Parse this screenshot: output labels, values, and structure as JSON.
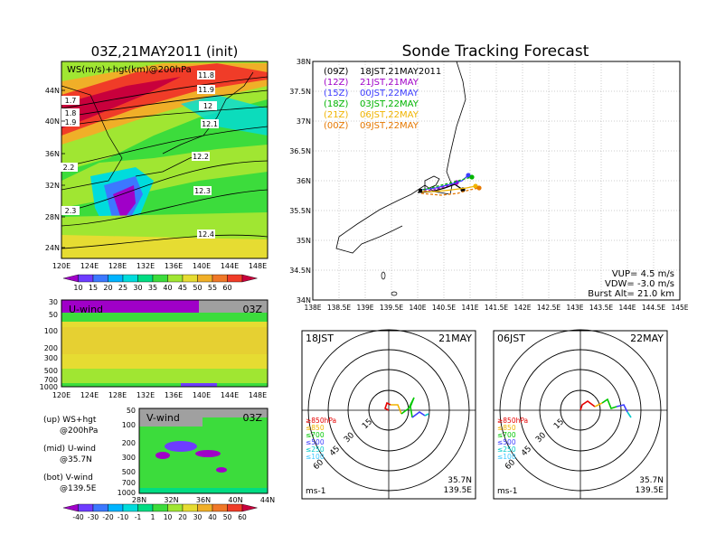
{
  "left_top": {
    "title": "03Z,21MAY2011 (init)",
    "inner_label": "WS(m/s)+hgt(km)@200hPa",
    "lat_ticks": [
      "44N",
      "40N",
      "36N",
      "32N",
      "28N",
      "24N"
    ],
    "lon_ticks": [
      "120E",
      "124E",
      "128E",
      "132E",
      "136E",
      "140E",
      "144E",
      "148E"
    ],
    "contour_labels": [
      "11.8",
      "11.9",
      "12",
      "12.1",
      "12.2",
      "12.3",
      "12.4",
      "1.7",
      "1.8",
      "1.9",
      "2.2",
      "2.3"
    ],
    "colorbar_labels": [
      "10",
      "15",
      "20",
      "25",
      "30",
      "35",
      "40",
      "45",
      "50",
      "55",
      "60"
    ],
    "colorbar_colors": [
      "#a000c8",
      "#6e3cff",
      "#3c78ff",
      "#00b4ff",
      "#00dcdc",
      "#00dc82",
      "#3cdc3c",
      "#a0e632",
      "#e6dc32",
      "#f0af28",
      "#f07828",
      "#f03c28",
      "#c8003c"
    ]
  },
  "u_panel": {
    "label": "U-wind",
    "time": "03Z",
    "p_ticks": [
      "30",
      "50",
      "100",
      "200",
      "300",
      "500",
      "700",
      "1000"
    ],
    "lon_ticks": [
      "120E",
      "124E",
      "128E",
      "132E",
      "136E",
      "140E",
      "144E",
      "148E"
    ]
  },
  "v_panel": {
    "label": "V-wind",
    "time": "03Z",
    "p_ticks": [
      "50",
      "100",
      "200",
      "300",
      "500",
      "700",
      "1000"
    ],
    "lat_ticks": [
      "28N",
      "32N",
      "36N",
      "40N",
      "44N"
    ]
  },
  "left_legend": {
    "lines": [
      [
        "(up) WS+hgt",
        "@200hPa"
      ],
      [
        "(mid) U-wind",
        "@35.7N"
      ],
      [
        "(bot) V-wind",
        "@139.5E"
      ]
    ]
  },
  "bottom_colorbar": {
    "labels": [
      "-40",
      "-30",
      "-20",
      "-10",
      "-1",
      "1",
      "10",
      "20",
      "30",
      "40",
      "50",
      "60"
    ],
    "colors": [
      "#a000c8",
      "#6e3cff",
      "#3c78ff",
      "#00b4ff",
      "#00dcdc",
      "#00dc82",
      "#3cdc3c",
      "#a0e632",
      "#e6dc32",
      "#f0af28",
      "#f07828",
      "#f03c28",
      "#c8003c"
    ]
  },
  "right_top": {
    "title": "Sonde Tracking Forecast",
    "lat_ticks": [
      "38N",
      "37.5N",
      "37N",
      "36.5N",
      "36N",
      "35.5N",
      "35N",
      "34.5N",
      "34N"
    ],
    "lon_ticks": [
      "138E",
      "138.5E",
      "139E",
      "139.5E",
      "140E",
      "140.5E",
      "141E",
      "141.5E",
      "142E",
      "142.5E",
      "143E",
      "143.5E",
      "144E",
      "144.5E",
      "145E"
    ],
    "legend": [
      {
        "code": "(09Z)",
        "text": "18JST,21MAY2011",
        "color": "#000000"
      },
      {
        "code": "(12Z)",
        "text": "21JST,21MAY",
        "color": "#a000c8"
      },
      {
        "code": "(15Z)",
        "text": "00JST,22MAY",
        "color": "#3c3cff"
      },
      {
        "code": "(18Z)",
        "text": "03JST,22MAY",
        "color": "#00b400"
      },
      {
        "code": "(21Z)",
        "text": "06JST,22MAY",
        "color": "#f0b400"
      },
      {
        "code": "(00Z)",
        "text": "09JST,22MAY",
        "color": "#e67800"
      }
    ],
    "params": [
      "VUP= 4.5 m/s",
      "VDW= -3.0 m/s",
      "Burst Alt= 21.0 km"
    ]
  },
  "hodo_left": {
    "time": "18JST",
    "date": "21MAY",
    "ring_labels": [
      "15",
      "30",
      "45",
      "60"
    ],
    "levels": [
      {
        "text": "≥850hPa",
        "color": "#e60000"
      },
      {
        "text": "≤850",
        "color": "#f0b400"
      },
      {
        "text": "≤700",
        "color": "#00c800"
      },
      {
        "text": "≤500",
        "color": "#3c3cff"
      },
      {
        "text": "≤250",
        "color": "#00c8c8"
      },
      {
        "text": "≤100",
        "color": "#3cc8ff"
      }
    ],
    "unit": "ms-1",
    "loc": [
      "35.7N",
      "139.5E"
    ]
  },
  "hodo_right": {
    "time": "06JST",
    "date": "22MAY",
    "ring_labels": [
      "15",
      "30",
      "45",
      "60"
    ],
    "unit": "ms-1",
    "loc": [
      "35.7N",
      "139.5E"
    ]
  }
}
